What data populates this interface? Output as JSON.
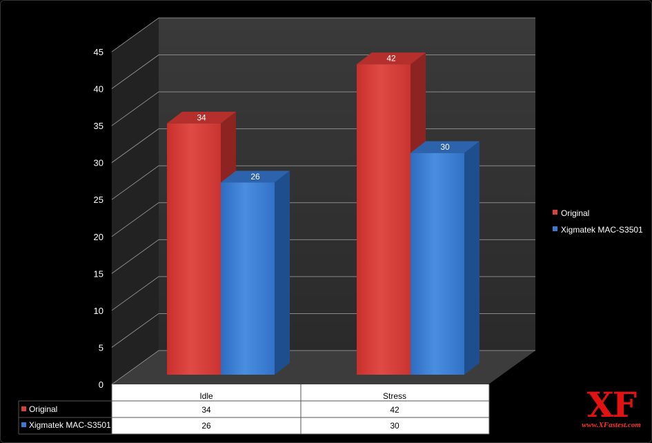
{
  "chart_data": {
    "type": "bar",
    "categories": [
      "Idle",
      "Stress"
    ],
    "series": [
      {
        "name": "Original",
        "values": [
          34,
          42
        ],
        "color": "#d7403c"
      },
      {
        "name": "Xigmatek MAC-S3501",
        "values": [
          26,
          30
        ],
        "color": "#3a7bd0"
      }
    ],
    "ylim": [
      0,
      45
    ],
    "yticks": [
      0,
      5,
      10,
      15,
      20,
      25,
      30,
      35,
      40,
      45
    ],
    "grid": true,
    "legend": "right",
    "data_table": true,
    "style": "3d"
  },
  "logo": {
    "mark": "XF",
    "url": "www.XFastest.com"
  }
}
